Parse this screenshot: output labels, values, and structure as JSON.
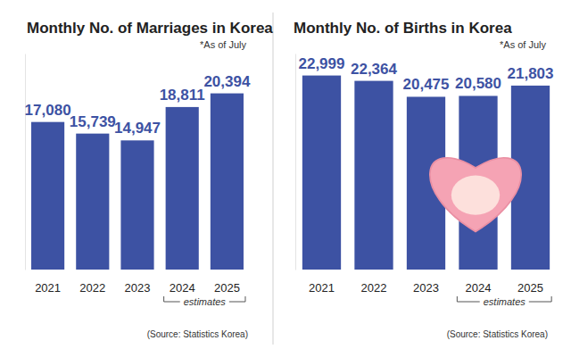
{
  "chart_data": [
    {
      "type": "bar",
      "title": "Monthly No. of Marriages in Korea",
      "subtitle": "*As of July",
      "categories": [
        "2021",
        "2022",
        "2023",
        "2024",
        "2025"
      ],
      "values": [
        17080,
        15739,
        14947,
        18811,
        20394
      ],
      "value_labels": [
        "17,080",
        "15,739",
        "14,947",
        "18,811",
        "20,394"
      ],
      "color": "#3d52a3",
      "ylim": [
        0,
        25000
      ],
      "data_labels": true,
      "tick_labels": "x",
      "annotation": {
        "text": "estimates",
        "categories": [
          "2024",
          "2025"
        ]
      },
      "source": "(Source: Statistics Korea)"
    },
    {
      "type": "bar",
      "title": "Monthly No. of Births in Korea",
      "subtitle": "*As of July",
      "categories": [
        "2021",
        "2022",
        "2023",
        "2024",
        "2025"
      ],
      "values": [
        22999,
        22364,
        20475,
        20580,
        21803
      ],
      "value_labels": [
        "22,999",
        "22,364",
        "20,475",
        "20,580",
        "21,803"
      ],
      "color": "#3d52a3",
      "ylim": [
        0,
        25600
      ],
      "data_labels": true,
      "tick_labels": "x",
      "annotation": {
        "text": "estimates",
        "categories": [
          "2024",
          "2025"
        ]
      },
      "source": "(Source: Statistics Korea)"
    }
  ]
}
